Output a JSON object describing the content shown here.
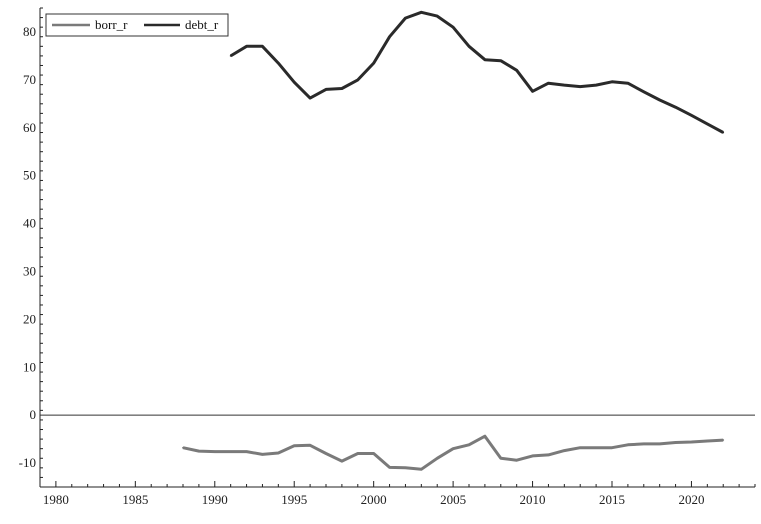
{
  "chart_data": {
    "type": "line",
    "title": "",
    "xlabel": "",
    "ylabel": "",
    "xlim": [
      1979,
      2024
    ],
    "ylim": [
      -15,
      85
    ],
    "x_ticks": [
      "1980",
      "1985",
      "1990",
      "1995",
      "2000",
      "2005",
      "2010",
      "2015",
      "2020"
    ],
    "y_ticks": [
      "-10",
      "0",
      "10",
      "20",
      "30",
      "40",
      "50",
      "60",
      "70",
      "80"
    ],
    "zero_line": true,
    "grid": false,
    "legend_position": "top-left",
    "series": [
      {
        "name": "borr_r",
        "color": "#7a7a7a",
        "points": [
          [
            1988,
            -6.8
          ],
          [
            1989,
            -7.5
          ],
          [
            1990,
            -7.6
          ],
          [
            1991,
            -7.6
          ],
          [
            1992,
            -7.6
          ],
          [
            1993,
            -8.2
          ],
          [
            1994,
            -7.9
          ],
          [
            1995,
            -6.4
          ],
          [
            1996,
            -6.3
          ],
          [
            1997,
            -8.0
          ],
          [
            1998,
            -9.6
          ],
          [
            1999,
            -8.0
          ],
          [
            2000,
            -8.0
          ],
          [
            2001,
            -10.9
          ],
          [
            2002,
            -11.0
          ],
          [
            2003,
            -11.3
          ],
          [
            2004,
            -9.0
          ],
          [
            2005,
            -7.0
          ],
          [
            2006,
            -6.2
          ],
          [
            2007,
            -4.4
          ],
          [
            2008,
            -9.0
          ],
          [
            2009,
            -9.4
          ],
          [
            2010,
            -8.5
          ],
          [
            2011,
            -8.3
          ],
          [
            2012,
            -7.4
          ],
          [
            2013,
            -6.8
          ],
          [
            2014,
            -6.8
          ],
          [
            2015,
            -6.8
          ],
          [
            2016,
            -6.2
          ],
          [
            2017,
            -6.0
          ],
          [
            2018,
            -6.0
          ],
          [
            2019,
            -5.7
          ],
          [
            2020,
            -5.6
          ],
          [
            2021,
            -5.4
          ],
          [
            2022,
            -5.2
          ]
        ]
      },
      {
        "name": "debt_r",
        "color": "#2a2a2a",
        "points": [
          [
            1991,
            75.0
          ],
          [
            1992,
            77.0
          ],
          [
            1993,
            77.0
          ],
          [
            1994,
            73.5
          ],
          [
            1995,
            69.5
          ],
          [
            1996,
            66.2
          ],
          [
            1997,
            68.0
          ],
          [
            1998,
            68.2
          ],
          [
            1999,
            70.0
          ],
          [
            2000,
            73.5
          ],
          [
            2001,
            79.0
          ],
          [
            2002,
            82.9
          ],
          [
            2003,
            84.1
          ],
          [
            2004,
            83.3
          ],
          [
            2005,
            81.0
          ],
          [
            2006,
            77.0
          ],
          [
            2007,
            74.2
          ],
          [
            2008,
            74.0
          ],
          [
            2009,
            72.0
          ],
          [
            2010,
            67.6
          ],
          [
            2011,
            69.3
          ],
          [
            2012,
            68.9
          ],
          [
            2013,
            68.6
          ],
          [
            2014,
            68.9
          ],
          [
            2015,
            69.6
          ],
          [
            2016,
            69.3
          ],
          [
            2017,
            67.5
          ],
          [
            2018,
            65.8
          ],
          [
            2019,
            64.3
          ],
          [
            2020,
            62.6
          ],
          [
            2021,
            60.8
          ],
          [
            2022,
            59.0
          ]
        ]
      }
    ]
  }
}
